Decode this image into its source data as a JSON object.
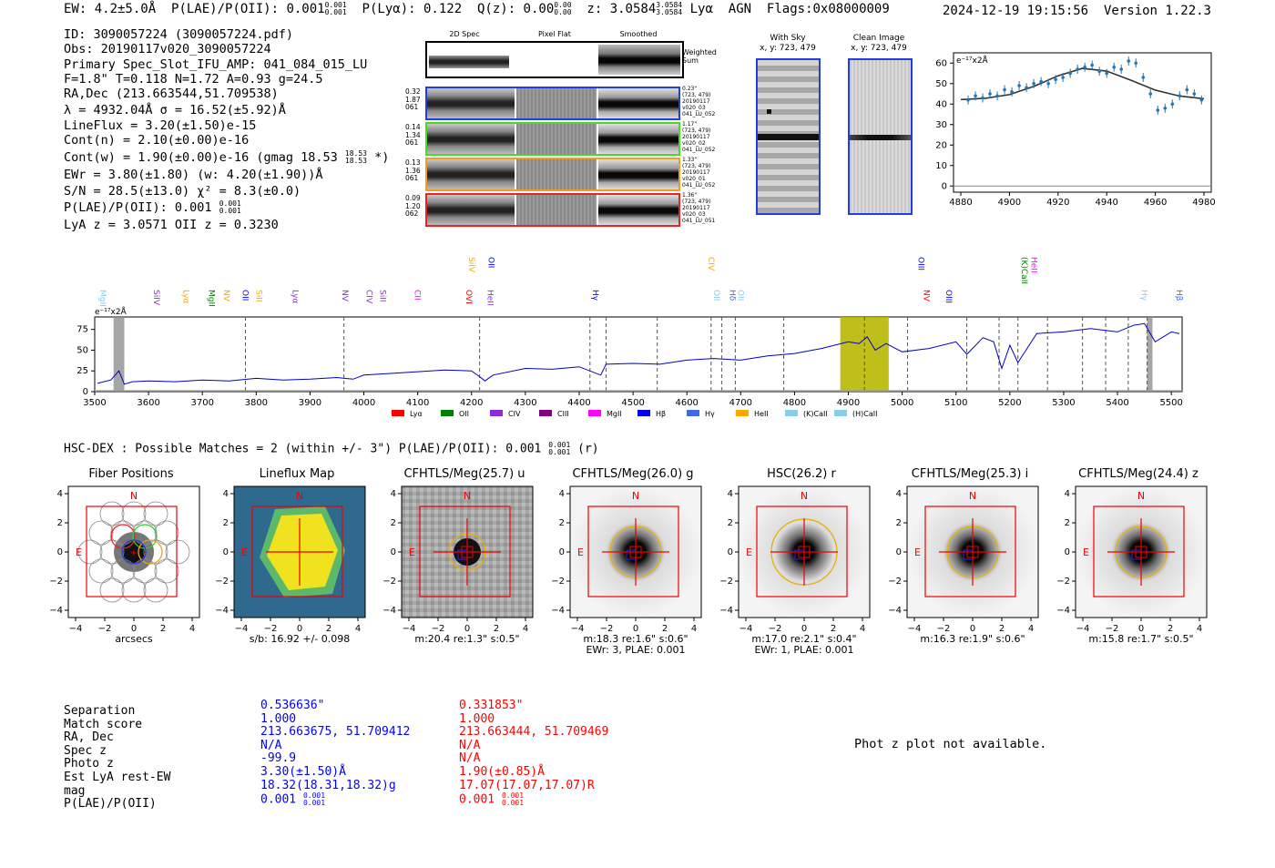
{
  "header": {
    "ew": "EW: 4.2±5.0Å",
    "plae_label": "P(LAE)/P(OII): 0.001",
    "plae_hi": "0.001",
    "plae_lo": "0.001",
    "plya": "P(Lyα): 0.122",
    "qz_label": "Q(z): 0.00",
    "qz_hi": "0.00",
    "qz_lo": "0.00",
    "z_label": "z: 3.0584",
    "z_hi": "3.0584",
    "z_lo": "3.0584",
    "line_name": "Lyα",
    "agn": "AGN",
    "flags": "Flags:0x08000009",
    "timestamp": "2024-12-19 19:15:56",
    "version": "Version 1.22.3"
  },
  "info": {
    "id": "ID: 3090057224 (3090057224.pdf)",
    "obs": "Obs: 20190117v020_3090057224",
    "slot": "Primary Spec_Slot_IFU_AMP: 041_084_015_LU",
    "params": "F=1.8\"  T=0.118  N=1.72  A=0.93  g=24.5",
    "radec": "RA,Dec (213.663544,51.709538)",
    "lambda": "λ = 4932.04Å  σ = 16.52(±5.92)Å",
    "lineflux": "LineFlux = 3.20(±1.50)e-15",
    "contn": "Cont(n) = 2.10(±0.00)e-16",
    "contw_label": "Cont(w) = 1.90(±0.00)e-16 (gmag 18.53",
    "contw_hi": "18.53",
    "contw_lo": "18.53",
    "contw_tail": "*)",
    "ewr": "EWr = 3.80(±1.80) (w: 4.20(±1.90))Å",
    "sn": "S/N = 28.5(±13.0)  χ² = 8.3(±0.0)",
    "plae_label": "P(LAE)/P(OII): 0.001",
    "plae_hi": "0.001",
    "plae_lo": "0.001",
    "lyaz": "LyA z = 3.0571  OII z = 0.3230"
  },
  "cutouts": {
    "col_2d": "2D Spec",
    "col_flat": "Pixel Flat",
    "col_smooth": "Smoothed",
    "weighted": "Weighted Sum",
    "rows": [
      {
        "left": [
          "0.32",
          "1.87",
          "061"
        ],
        "right": [
          "0.23\"",
          "(723, 479)",
          "20190117",
          "v020_03",
          "041_LU_052"
        ],
        "color": "#1f3fe0"
      },
      {
        "left": [
          "0.14",
          "1.34",
          "061"
        ],
        "right": [
          "1.17\"",
          "(723, 479)",
          "20190117",
          "v020_02",
          "041_LU_052"
        ],
        "color": "#44dd22"
      },
      {
        "left": [
          "0.13",
          "1.36",
          "061"
        ],
        "right": [
          "1.33\"",
          "(723, 479)",
          "20190117",
          "v020_01",
          "041_LU_052"
        ],
        "color": "#f0a020"
      },
      {
        "left": [
          "0.09",
          "1.20",
          "062"
        ],
        "right": [
          "1.36\"",
          "(723, 479)",
          "20190117",
          "v020_03",
          "041_LU_051"
        ],
        "color": "#ee2222"
      }
    ]
  },
  "sky": {
    "with_sky_title": "With Sky",
    "with_sky_coords": "x, y: 723, 479",
    "clean_title": "Clean Image",
    "clean_coords": "x, y: 723, 479"
  },
  "zoom_chart": {
    "unit_label": "e⁻¹⁷x2Å",
    "x_ticks": [
      "4880",
      "4900",
      "4920",
      "4940",
      "4960",
      "4980"
    ],
    "y_ticks": [
      "0",
      "10",
      "20",
      "30",
      "40",
      "50",
      "60"
    ]
  },
  "chart_data": [
    {
      "type": "scatter",
      "title": "",
      "xlabel": "",
      "ylabel": "e⁻¹⁷x2Å",
      "xlim": [
        4877,
        4983
      ],
      "ylim": [
        -3,
        65
      ],
      "x": [
        4883,
        4886,
        4889,
        4892,
        4895,
        4898,
        4901,
        4904,
        4907,
        4910,
        4913,
        4916,
        4919,
        4922,
        4925,
        4928,
        4931,
        4934,
        4937,
        4940,
        4943,
        4946,
        4949,
        4952,
        4955,
        4958,
        4961,
        4964,
        4967,
        4970,
        4973,
        4976,
        4979
      ],
      "y": [
        42,
        44,
        43,
        45,
        44,
        47,
        46,
        49,
        48,
        50,
        51,
        50,
        52,
        53,
        55,
        57,
        58,
        59,
        56,
        55,
        58,
        57,
        61,
        60,
        53,
        45,
        37,
        38,
        40,
        44,
        47,
        45,
        42
      ],
      "fit": {
        "name": "gaussian fit",
        "x": [
          4880,
          4890,
          4900,
          4910,
          4920,
          4930,
          4940,
          4950,
          4960,
          4970,
          4980
        ],
        "y": [
          42.2,
          42.8,
          44.6,
          48.6,
          53.8,
          57.4,
          56.1,
          51.6,
          46.8,
          43.9,
          42.6
        ]
      }
    },
    {
      "type": "line",
      "title": "",
      "xlabel": "",
      "ylabel": "e⁻¹⁷x2Å",
      "xlim": [
        3500,
        5520
      ],
      "ylim": [
        0,
        90
      ],
      "x_ticks": [
        "3500",
        "3600",
        "3700",
        "3800",
        "3900",
        "4000",
        "4100",
        "4200",
        "4300",
        "4400",
        "4500",
        "4600",
        "4700",
        "4800",
        "4900",
        "5000",
        "5100",
        "5200",
        "5300",
        "5400",
        "5500"
      ],
      "y_ticks": [
        "0",
        "25",
        "50",
        "75"
      ],
      "series": [
        {
          "name": "spectrum",
          "color": "#0000cc",
          "x": [
            3505,
            3530,
            3545,
            3555,
            3570,
            3600,
            3650,
            3700,
            3750,
            3800,
            3850,
            3900,
            3950,
            3980,
            4000,
            4050,
            4100,
            4150,
            4200,
            4215,
            4225,
            4240,
            4300,
            4350,
            4400,
            4440,
            4450,
            4500,
            4550,
            4600,
            4650,
            4700,
            4750,
            4800,
            4850,
            4900,
            4920,
            4935,
            4950,
            4970,
            5000,
            5050,
            5100,
            5120,
            5150,
            5170,
            5185,
            5200,
            5215,
            5250,
            5300,
            5350,
            5400,
            5430,
            5450,
            5470,
            5500,
            5515
          ],
          "y": [
            10,
            14,
            25,
            9,
            12,
            13,
            12,
            14,
            13,
            16,
            14,
            15,
            17,
            15,
            20,
            22,
            24,
            26,
            25,
            18,
            13,
            20,
            28,
            27,
            30,
            20,
            33,
            34,
            33,
            38,
            40,
            38,
            43,
            46,
            52,
            60,
            58,
            66,
            50,
            58,
            48,
            52,
            60,
            45,
            65,
            60,
            28,
            56,
            35,
            70,
            72,
            76,
            72,
            80,
            82,
            60,
            72,
            70
          ]
        }
      ],
      "shaded": [
        {
          "from": 3535,
          "to": 3555,
          "color": "gray"
        },
        {
          "from": 4885,
          "to": 4975,
          "color": "olive"
        },
        {
          "from": 5455,
          "to": 5465,
          "color": "gray"
        }
      ],
      "dashed_lines": [
        3780,
        3963,
        4215,
        4420,
        4450,
        4545,
        4645,
        4665,
        4690,
        4780,
        4930,
        5010,
        5120,
        5180,
        5215,
        5270,
        5335,
        5378,
        5420,
        5455
      ],
      "line_labels": [
        {
          "text": "MgII",
          "x": 3510,
          "color": "#87ceeb"
        },
        {
          "text": "SiIV",
          "x": 3610,
          "color": "#8a2be2"
        },
        {
          "text": "Lyα",
          "x": 3665,
          "color": "#ffa500"
        },
        {
          "text": "MgII",
          "x": 3712,
          "color": "#008000"
        },
        {
          "text": "NV",
          "x": 3740,
          "color": "#ffa500"
        },
        {
          "text": "OII",
          "x": 3775,
          "color": "#0000ff"
        },
        {
          "text": "SiII",
          "x": 3800,
          "color": "#ffa500"
        },
        {
          "text": "Lyα",
          "x": 3868,
          "color": "#8a2be2"
        },
        {
          "text": "NV",
          "x": 3960,
          "color": "#8a2be2"
        },
        {
          "text": "CIV",
          "x": 4005,
          "color": "#8a2be2"
        },
        {
          "text": "SiII",
          "x": 4030,
          "color": "#8a2be2"
        },
        {
          "text": "CII",
          "x": 4095,
          "color": "#ff00ff"
        },
        {
          "text": "OVI",
          "x": 4190,
          "color": "#ff0000"
        },
        {
          "text": "SiIV",
          "x": 4195,
          "color": "#ffa500"
        },
        {
          "text": "HeII",
          "x": 4230,
          "color": "#8a2be2"
        },
        {
          "text": "OII",
          "x": 4232,
          "color": "#0000ff"
        },
        {
          "text": "Hγ",
          "x": 4425,
          "color": "#0000ff"
        },
        {
          "text": "OII",
          "x": 4650,
          "color": "#87ceeb"
        },
        {
          "text": "Hδ",
          "x": 4680,
          "color": "#4169e1"
        },
        {
          "text": "OII",
          "x": 4695,
          "color": "#87ceeb"
        },
        {
          "text": "CIV",
          "x": 4640,
          "color": "#ffa500"
        },
        {
          "text": "OIII",
          "x": 5030,
          "color": "#0000ff"
        },
        {
          "text": "NV",
          "x": 5040,
          "color": "#ff0000"
        },
        {
          "text": "OIII",
          "x": 5082,
          "color": "#0000ff"
        },
        {
          "text": "(K)CaII",
          "x": 5222,
          "color": "#008000"
        },
        {
          "text": "HeII",
          "x": 5240,
          "color": "#ff00ff"
        },
        {
          "text": "Hγ",
          "x": 5445,
          "color": "#87ceeb"
        },
        {
          "text": "Hβ",
          "x": 5510,
          "color": "#4169e1"
        }
      ]
    }
  ],
  "spec_chart": {
    "unit_label": "e⁻¹⁷x2Å",
    "legend": [
      {
        "label": "Lyα",
        "color": "#ff0000"
      },
      {
        "label": "OII",
        "color": "#008000"
      },
      {
        "label": "CIV",
        "color": "#8a2be2"
      },
      {
        "label": "CIII",
        "color": "#800080"
      },
      {
        "label": "MgII",
        "color": "#ff00ff"
      },
      {
        "label": "Hβ",
        "color": "#0000ff"
      },
      {
        "label": "Hγ",
        "color": "#4169e1"
      },
      {
        "label": "HeII",
        "color": "#ffa500"
      },
      {
        "label": "(K)CaII",
        "color": "#87ceeb"
      },
      {
        "label": "(H)CaII",
        "color": "#87ceeb"
      }
    ]
  },
  "matches": {
    "title_label": "HSC-DEX : Possible Matches = 2 (within +/- 3\")  P(LAE)/P(OII): 0.001",
    "plae_hi": "0.001",
    "plae_lo": "0.001",
    "band": "(r)"
  },
  "panels": [
    {
      "title": "Fiber Positions",
      "foot": [
        "arcsecs"
      ],
      "kind": "fiber"
    },
    {
      "title": "Lineflux Map",
      "foot": [
        "s/b: 16.92 +/- 0.098"
      ],
      "kind": "lineflux"
    },
    {
      "title": "CFHTLS/Meg(25.7) u",
      "foot": [
        "m:20.4  re:1.3\"  s:0.5\""
      ],
      "kind": "noisy"
    },
    {
      "title": "CFHTLS/Meg(26.0) g",
      "foot": [
        "m:18.3  re:1.6\"  s:0.6\"",
        "EWr: 3, PLAE: 0.001"
      ],
      "kind": "star"
    },
    {
      "title": "HSC(26.2) r",
      "foot": [
        "m:17.0  re:2.1\"  s:0.4\"",
        "EWr: 1, PLAE: 0.001"
      ],
      "kind": "star-big"
    },
    {
      "title": "CFHTLS/Meg(25.3) i",
      "foot": [
        "m:16.3  re:1.9\"  s:0.6\""
      ],
      "kind": "star"
    },
    {
      "title": "CFHTLS/Meg(24.4) z",
      "foot": [
        "m:15.8  re:1.7\"  s:0.5\""
      ],
      "kind": "star"
    }
  ],
  "panel_axes": {
    "x_ticks": [
      "−4",
      "−2",
      "0",
      "2",
      "4"
    ],
    "y_ticks": [
      "4",
      "2",
      "0",
      "−2",
      "−4"
    ],
    "north": "N",
    "east": "E"
  },
  "table": {
    "labels": [
      "Separation",
      "Match score",
      "RA, Dec",
      "Spec z",
      "Photo z",
      "Est LyA rest-EW",
      "mag",
      "P(LAE)/P(OII)"
    ],
    "col1": [
      "0.536636\"",
      "1.000",
      "213.663675, 51.709412",
      "N/A",
      "-99.9",
      "3.30(±1.50)Å",
      "18.32(18.31,18.32)g",
      "0.001"
    ],
    "col1_plae_hi": "0.001",
    "col1_plae_lo": "0.001",
    "col2": [
      "0.331853\"",
      "1.000",
      "213.663444, 51.709469",
      "N/A",
      "N/A",
      "1.90(±0.85)Å",
      "17.07(17.07,17.07)R",
      "0.001"
    ],
    "col2_plae_hi": "0.001",
    "col2_plae_lo": "0.001",
    "photz_note": "Phot z plot not available."
  }
}
